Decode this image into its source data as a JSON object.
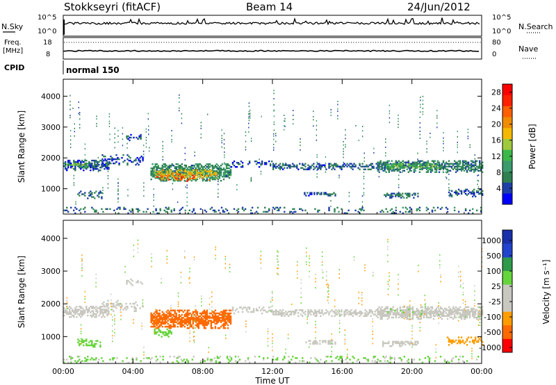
{
  "header": {
    "radar": "Stokkseyri (fitACF)",
    "beam": "Beam 14",
    "date": "24/Jun/2012"
  },
  "noise_panel": {
    "left_label": "N.Sky",
    "left_ticks": [
      "10^5",
      "10^0"
    ],
    "right_label": "N.Search",
    "right_ticks": [
      "10^5",
      "10^0"
    ]
  },
  "freq_panel": {
    "left_label_1": "Freq.",
    "left_label_2": "[MHz]",
    "left_ticks": [
      "18",
      "8"
    ],
    "right_label": "Nave",
    "right_ticks": [
      "80",
      "0"
    ]
  },
  "cpid_panel": {
    "label": "CPID",
    "value": "normal 150"
  },
  "colors": {
    "power_scale": [
      "#0000ff",
      "#1f3fa8",
      "#2f8050",
      "#3c9a6c",
      "#3cb84a",
      "#a0c83c",
      "#f5b800",
      "#f08c00",
      "#ff6000",
      "#ff2000",
      "#ff0000"
    ],
    "velocity_scale": [
      "#ff0000",
      "#ff6a00",
      "#ff9c00",
      "#c8c8c0",
      "#c8c8c0",
      "#66d43c",
      "#2e9a4a",
      "#2244cc",
      "#1a2faa"
    ]
  },
  "chart_data": [
    {
      "type": "heatmap",
      "title": "",
      "xlabel": "",
      "ylabel": "Slant Range [km]",
      "xlim": [
        0,
        24
      ],
      "ylim": [
        180,
        4550
      ],
      "x_ticks": [
        "00:00",
        "04:00",
        "08:00",
        "12:00",
        "16:00",
        "20:00",
        "00:00"
      ],
      "y_ticks": [
        "1000",
        "2000",
        "3000",
        "4000"
      ],
      "colorbar_label": "Power [dB]",
      "colorbar_ticks": [
        "4",
        "8",
        "12",
        "16",
        "20",
        "24",
        "28"
      ],
      "value_range": [
        0,
        30
      ],
      "regions": [
        {
          "t_start": 0.0,
          "t_end": 2.6,
          "range_center": 1750,
          "range_halfwidth": 170,
          "density": 0.8,
          "value": 5
        },
        {
          "t_start": 0.0,
          "t_end": 1.4,
          "range_center": 1750,
          "range_halfwidth": 90,
          "density": 0.5,
          "value": 13
        },
        {
          "t_start": 0.8,
          "t_end": 2.2,
          "range_center": 800,
          "range_halfwidth": 130,
          "density": 0.45,
          "value": 6
        },
        {
          "t_start": 2.2,
          "t_end": 4.6,
          "range_center": 1920,
          "range_halfwidth": 160,
          "density": 0.35,
          "value": 4
        },
        {
          "t_start": 3.6,
          "t_end": 4.5,
          "range_center": 2650,
          "range_halfwidth": 100,
          "density": 0.45,
          "value": 4
        },
        {
          "t_start": 5.0,
          "t_end": 9.6,
          "range_center": 1520,
          "range_halfwidth": 280,
          "density": 0.9,
          "value": 8
        },
        {
          "t_start": 5.2,
          "t_end": 8.8,
          "range_center": 1450,
          "range_halfwidth": 180,
          "density": 0.6,
          "value": 17
        },
        {
          "t_start": 5.3,
          "t_end": 7.5,
          "range_center": 1350,
          "range_halfwidth": 120,
          "density": 0.35,
          "value": 24
        },
        {
          "t_start": 9.6,
          "t_end": 12.0,
          "range_center": 1800,
          "range_halfwidth": 110,
          "density": 0.3,
          "value": 4
        },
        {
          "t_start": 12.0,
          "t_end": 18.0,
          "range_center": 1720,
          "range_halfwidth": 110,
          "density": 0.6,
          "value": 5
        },
        {
          "t_start": 13.8,
          "t_end": 15.6,
          "range_center": 820,
          "range_halfwidth": 60,
          "density": 0.75,
          "value": 5
        },
        {
          "t_start": 18.0,
          "t_end": 24.0,
          "range_center": 1710,
          "range_halfwidth": 190,
          "density": 0.85,
          "value": 7
        },
        {
          "t_start": 18.5,
          "t_end": 21.5,
          "range_center": 1720,
          "range_halfwidth": 80,
          "density": 0.55,
          "value": 13
        },
        {
          "t_start": 18.3,
          "t_end": 20.3,
          "range_center": 780,
          "range_halfwidth": 90,
          "density": 0.75,
          "value": 6
        },
        {
          "t_start": 22.0,
          "t_end": 24.0,
          "range_center": 850,
          "range_halfwidth": 120,
          "density": 0.55,
          "value": 5
        },
        {
          "t_start": 0.0,
          "t_end": 24.0,
          "range_center": 300,
          "range_halfwidth": 110,
          "density": 0.22,
          "value": 6
        }
      ]
    },
    {
      "type": "heatmap",
      "title": "",
      "xlabel": "Time UT",
      "ylabel": "Slant Range [km]",
      "xlim": [
        0,
        24
      ],
      "ylim": [
        180,
        4550
      ],
      "x_ticks": [
        "00:00",
        "04:00",
        "08:00",
        "12:00",
        "16:00",
        "20:00",
        "00:00"
      ],
      "y_ticks": [
        "1000",
        "2000",
        "3000",
        "4000"
      ],
      "colorbar_label": "Velocity [m s⁻¹]",
      "colorbar_ticks": [
        "1000",
        "500",
        "100",
        "25",
        "-25",
        "-100",
        "-500",
        "-1000"
      ],
      "value_range": [
        -1200,
        1200
      ],
      "regions": [
        {
          "t_start": 0.0,
          "t_end": 2.6,
          "range_center": 1750,
          "range_halfwidth": 170,
          "density": 0.8,
          "value": 0
        },
        {
          "t_start": 0.8,
          "t_end": 2.2,
          "range_center": 800,
          "range_halfwidth": 130,
          "density": 0.45,
          "value": 120
        },
        {
          "t_start": 2.2,
          "t_end": 4.6,
          "range_center": 1920,
          "range_halfwidth": 160,
          "density": 0.35,
          "value": 0
        },
        {
          "t_start": 3.6,
          "t_end": 4.5,
          "range_center": 2650,
          "range_halfwidth": 100,
          "density": 0.45,
          "value": 0
        },
        {
          "t_start": 5.0,
          "t_end": 9.6,
          "range_center": 1520,
          "range_halfwidth": 280,
          "density": 0.9,
          "value": -400
        },
        {
          "t_start": 5.2,
          "t_end": 6.2,
          "range_center": 1100,
          "range_halfwidth": 120,
          "density": 0.6,
          "value": 150
        },
        {
          "t_start": 9.6,
          "t_end": 12.0,
          "range_center": 1800,
          "range_halfwidth": 110,
          "density": 0.3,
          "value": 0
        },
        {
          "t_start": 12.0,
          "t_end": 18.0,
          "range_center": 1720,
          "range_halfwidth": 110,
          "density": 0.6,
          "value": 0
        },
        {
          "t_start": 13.8,
          "t_end": 15.6,
          "range_center": 820,
          "range_halfwidth": 60,
          "density": 0.75,
          "value": 0
        },
        {
          "t_start": 18.0,
          "t_end": 24.0,
          "range_center": 1710,
          "range_halfwidth": 190,
          "density": 0.85,
          "value": 0
        },
        {
          "t_start": 18.5,
          "t_end": 20.5,
          "range_center": 1750,
          "range_halfwidth": 70,
          "density": 0.25,
          "value": 150
        },
        {
          "t_start": 18.3,
          "t_end": 20.3,
          "range_center": 780,
          "range_halfwidth": 90,
          "density": 0.75,
          "value": 0
        },
        {
          "t_start": 22.0,
          "t_end": 24.0,
          "range_center": 850,
          "range_halfwidth": 120,
          "density": 0.55,
          "value": -120
        },
        {
          "t_start": 0.0,
          "t_end": 24.0,
          "range_center": 300,
          "range_halfwidth": 110,
          "density": 0.22,
          "value": 80
        }
      ]
    }
  ]
}
